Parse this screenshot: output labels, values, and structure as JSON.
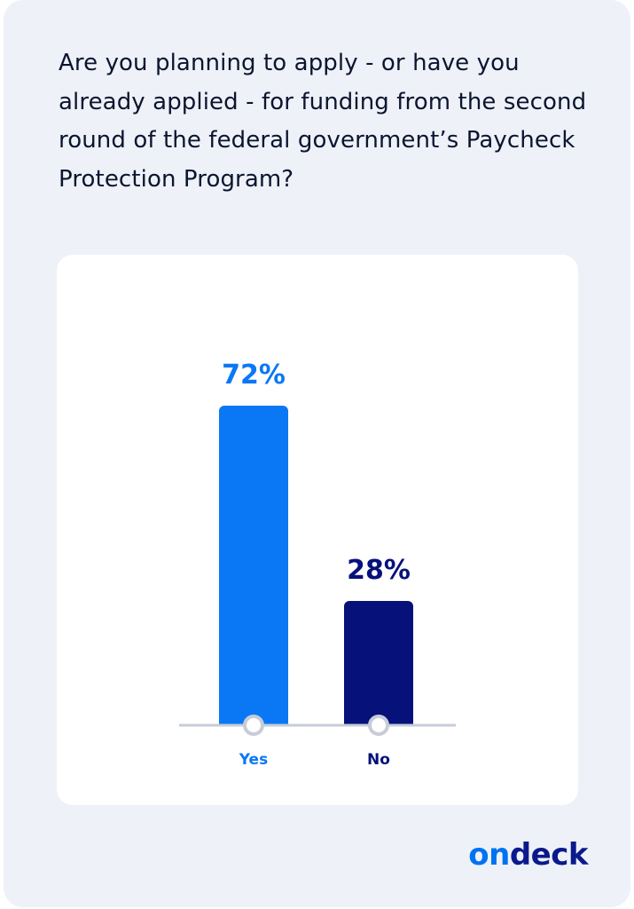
{
  "question": "Are you planning to apply - or have you already applied - for funding from the second round of the federal government’s Paycheck Protection Program?",
  "chart_data": {
    "type": "bar",
    "categories": [
      "Yes",
      "No"
    ],
    "values": [
      72,
      28
    ],
    "value_labels": [
      "72%",
      "28%"
    ],
    "unit": "%",
    "ylim": [
      0,
      72
    ],
    "colors": [
      "#0a78f5",
      "#07117a"
    ],
    "label_colors": [
      "#0a78f5",
      "#07117a"
    ],
    "title": "",
    "xlabel": "",
    "ylabel": "",
    "grid": false,
    "legend": "none"
  },
  "brand": {
    "part1": "on",
    "part2": "deck",
    "colors": [
      "#0072f0",
      "#0a1a8c"
    ]
  },
  "colors": {
    "card_background": "#eef1f7",
    "panel_background": "#ffffff",
    "text": "#0b1530",
    "baseline": "#c7ccd8"
  }
}
